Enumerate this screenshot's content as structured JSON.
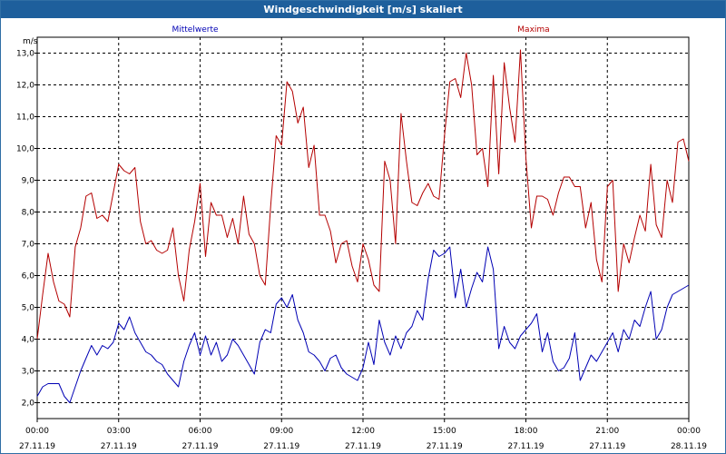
{
  "window": {
    "title": "Windgeschwindigkeit [m/s] skaliert"
  },
  "colors": {
    "titlebar": "#1e5f9c",
    "mittelwerte": "#0000b4",
    "maxima": "#b40000",
    "grid": "#000000"
  },
  "chart_data": {
    "type": "line",
    "title": "Windgeschwindigkeit [m/s] skaliert",
    "ylabel": "m/s",
    "xlabel": "",
    "ylim": [
      1.5,
      13.5
    ],
    "xlim": [
      0,
      24
    ],
    "grid": true,
    "yticks": [
      "2,0",
      "3,0",
      "4,0",
      "5,0",
      "6,0",
      "7,0",
      "8,0",
      "9,0",
      "10,0",
      "11,0",
      "12,0",
      "13,0"
    ],
    "ytick_values": [
      2,
      3,
      4,
      5,
      6,
      7,
      8,
      9,
      10,
      11,
      12,
      13
    ],
    "xticks": [
      {
        "time": "00:00",
        "date": "27.11.19"
      },
      {
        "time": "03:00",
        "date": "27.11.19"
      },
      {
        "time": "06:00",
        "date": "27.11.19"
      },
      {
        "time": "09:00",
        "date": "27.11.19"
      },
      {
        "time": "12:00",
        "date": "27.11.19"
      },
      {
        "time": "15:00",
        "date": "27.11.19"
      },
      {
        "time": "18:00",
        "date": "27.11.19"
      },
      {
        "time": "21:00",
        "date": "27.11.19"
      },
      {
        "time": "00:00",
        "date": "28.11.19"
      }
    ],
    "series": [
      {
        "name": "Mittelwerte",
        "color": "#0000b4",
        "points": [
          [
            0.0,
            2.2
          ],
          [
            0.2,
            2.5
          ],
          [
            0.4,
            2.6
          ],
          [
            0.6,
            2.6
          ],
          [
            0.8,
            2.6
          ],
          [
            1.0,
            2.2
          ],
          [
            1.2,
            2.0
          ],
          [
            1.4,
            2.5
          ],
          [
            1.6,
            3.0
          ],
          [
            1.8,
            3.4
          ],
          [
            2.0,
            3.8
          ],
          [
            2.2,
            3.5
          ],
          [
            2.4,
            3.8
          ],
          [
            2.6,
            3.7
          ],
          [
            2.8,
            3.9
          ],
          [
            3.0,
            4.5
          ],
          [
            3.2,
            4.3
          ],
          [
            3.4,
            4.7
          ],
          [
            3.6,
            4.2
          ],
          [
            3.8,
            3.9
          ],
          [
            4.0,
            3.6
          ],
          [
            4.2,
            3.5
          ],
          [
            4.4,
            3.3
          ],
          [
            4.6,
            3.2
          ],
          [
            4.8,
            2.9
          ],
          [
            5.0,
            2.7
          ],
          [
            5.2,
            2.5
          ],
          [
            5.4,
            3.3
          ],
          [
            5.6,
            3.8
          ],
          [
            5.8,
            4.2
          ],
          [
            6.0,
            3.5
          ],
          [
            6.2,
            4.1
          ],
          [
            6.4,
            3.5
          ],
          [
            6.6,
            3.9
          ],
          [
            6.8,
            3.3
          ],
          [
            7.0,
            3.5
          ],
          [
            7.2,
            4.0
          ],
          [
            7.4,
            3.8
          ],
          [
            7.6,
            3.5
          ],
          [
            7.8,
            3.2
          ],
          [
            8.0,
            2.9
          ],
          [
            8.2,
            3.9
          ],
          [
            8.4,
            4.3
          ],
          [
            8.6,
            4.2
          ],
          [
            8.8,
            5.1
          ],
          [
            9.0,
            5.3
          ],
          [
            9.2,
            5.0
          ],
          [
            9.4,
            5.4
          ],
          [
            9.6,
            4.6
          ],
          [
            9.8,
            4.2
          ],
          [
            10.0,
            3.6
          ],
          [
            10.2,
            3.5
          ],
          [
            10.4,
            3.3
          ],
          [
            10.6,
            3.0
          ],
          [
            10.8,
            3.4
          ],
          [
            11.0,
            3.5
          ],
          [
            11.2,
            3.1
          ],
          [
            11.4,
            2.9
          ],
          [
            11.6,
            2.8
          ],
          [
            11.8,
            2.7
          ],
          [
            12.0,
            3.1
          ],
          [
            12.2,
            3.9
          ],
          [
            12.4,
            3.2
          ],
          [
            12.6,
            4.6
          ],
          [
            12.8,
            3.9
          ],
          [
            13.0,
            3.5
          ],
          [
            13.2,
            4.1
          ],
          [
            13.4,
            3.7
          ],
          [
            13.6,
            4.2
          ],
          [
            13.8,
            4.4
          ],
          [
            14.0,
            4.9
          ],
          [
            14.2,
            4.6
          ],
          [
            14.4,
            5.9
          ],
          [
            14.6,
            6.8
          ],
          [
            14.8,
            6.6
          ],
          [
            15.0,
            6.7
          ],
          [
            15.2,
            6.9
          ],
          [
            15.4,
            5.3
          ],
          [
            15.6,
            6.2
          ],
          [
            15.8,
            5.0
          ],
          [
            16.0,
            5.6
          ],
          [
            16.2,
            6.1
          ],
          [
            16.4,
            5.8
          ],
          [
            16.6,
            6.9
          ],
          [
            16.8,
            6.2
          ],
          [
            17.0,
            3.7
          ],
          [
            17.2,
            4.4
          ],
          [
            17.4,
            3.9
          ],
          [
            17.6,
            3.7
          ],
          [
            17.8,
            4.1
          ],
          [
            18.0,
            4.3
          ],
          [
            18.2,
            4.5
          ],
          [
            18.4,
            4.8
          ],
          [
            18.6,
            3.6
          ],
          [
            18.8,
            4.2
          ],
          [
            19.0,
            3.3
          ],
          [
            19.2,
            3.0
          ],
          [
            19.4,
            3.1
          ],
          [
            19.6,
            3.4
          ],
          [
            19.8,
            4.2
          ],
          [
            20.0,
            2.7
          ],
          [
            20.2,
            3.1
          ],
          [
            20.4,
            3.5
          ],
          [
            20.6,
            3.3
          ],
          [
            20.8,
            3.6
          ],
          [
            21.0,
            3.9
          ],
          [
            21.2,
            4.2
          ],
          [
            21.4,
            3.6
          ],
          [
            21.6,
            4.3
          ],
          [
            21.8,
            4.0
          ],
          [
            22.0,
            4.6
          ],
          [
            22.2,
            4.4
          ],
          [
            22.4,
            5.0
          ],
          [
            22.6,
            5.5
          ],
          [
            22.8,
            4.0
          ],
          [
            23.0,
            4.3
          ],
          [
            23.2,
            5.0
          ],
          [
            23.4,
            5.4
          ],
          [
            23.6,
            5.5
          ],
          [
            23.8,
            5.6
          ],
          [
            24.0,
            5.7
          ]
        ]
      },
      {
        "name": "Maxima",
        "color": "#b40000",
        "points": [
          [
            0.0,
            4.0
          ],
          [
            0.2,
            5.4
          ],
          [
            0.4,
            6.7
          ],
          [
            0.6,
            5.8
          ],
          [
            0.8,
            5.2
          ],
          [
            1.0,
            5.1
          ],
          [
            1.2,
            4.7
          ],
          [
            1.4,
            6.9
          ],
          [
            1.6,
            7.5
          ],
          [
            1.8,
            8.5
          ],
          [
            2.0,
            8.6
          ],
          [
            2.2,
            7.8
          ],
          [
            2.4,
            7.9
          ],
          [
            2.6,
            7.7
          ],
          [
            2.8,
            8.6
          ],
          [
            3.0,
            9.5
          ],
          [
            3.2,
            9.3
          ],
          [
            3.4,
            9.2
          ],
          [
            3.6,
            9.4
          ],
          [
            3.8,
            7.7
          ],
          [
            4.0,
            7.0
          ],
          [
            4.2,
            7.1
          ],
          [
            4.4,
            6.8
          ],
          [
            4.6,
            6.7
          ],
          [
            4.8,
            6.8
          ],
          [
            5.0,
            7.5
          ],
          [
            5.2,
            6.0
          ],
          [
            5.4,
            5.2
          ],
          [
            5.6,
            6.8
          ],
          [
            5.8,
            7.7
          ],
          [
            6.0,
            8.9
          ],
          [
            6.2,
            6.6
          ],
          [
            6.4,
            8.3
          ],
          [
            6.6,
            7.9
          ],
          [
            6.8,
            7.9
          ],
          [
            7.0,
            7.2
          ],
          [
            7.2,
            7.8
          ],
          [
            7.4,
            7.0
          ],
          [
            7.6,
            8.5
          ],
          [
            7.8,
            7.3
          ],
          [
            8.0,
            7.0
          ],
          [
            8.2,
            6.0
          ],
          [
            8.4,
            5.7
          ],
          [
            8.6,
            8.2
          ],
          [
            8.8,
            10.4
          ],
          [
            9.0,
            10.1
          ],
          [
            9.2,
            12.1
          ],
          [
            9.4,
            11.8
          ],
          [
            9.6,
            10.8
          ],
          [
            9.8,
            11.3
          ],
          [
            10.0,
            9.4
          ],
          [
            10.2,
            10.1
          ],
          [
            10.4,
            7.9
          ],
          [
            10.6,
            7.9
          ],
          [
            10.8,
            7.4
          ],
          [
            11.0,
            6.4
          ],
          [
            11.2,
            7.0
          ],
          [
            11.4,
            7.1
          ],
          [
            11.6,
            6.3
          ],
          [
            11.8,
            5.8
          ],
          [
            12.0,
            7.0
          ],
          [
            12.2,
            6.5
          ],
          [
            12.4,
            5.7
          ],
          [
            12.6,
            5.5
          ],
          [
            12.8,
            9.6
          ],
          [
            13.0,
            9.0
          ],
          [
            13.2,
            7.0
          ],
          [
            13.4,
            11.1
          ],
          [
            13.6,
            9.6
          ],
          [
            13.8,
            8.3
          ],
          [
            14.0,
            8.2
          ],
          [
            14.2,
            8.6
          ],
          [
            14.4,
            8.9
          ],
          [
            14.6,
            8.5
          ],
          [
            14.8,
            8.4
          ],
          [
            15.0,
            10.4
          ],
          [
            15.2,
            12.1
          ],
          [
            15.4,
            12.2
          ],
          [
            15.6,
            11.6
          ],
          [
            15.8,
            13.0
          ],
          [
            16.0,
            12.0
          ],
          [
            16.2,
            9.8
          ],
          [
            16.4,
            10.0
          ],
          [
            16.6,
            8.8
          ],
          [
            16.8,
            12.3
          ],
          [
            17.0,
            9.2
          ],
          [
            17.2,
            12.7
          ],
          [
            17.4,
            11.3
          ],
          [
            17.6,
            10.2
          ],
          [
            17.8,
            13.1
          ],
          [
            18.0,
            9.7
          ],
          [
            18.2,
            7.5
          ],
          [
            18.4,
            8.5
          ],
          [
            18.6,
            8.5
          ],
          [
            18.8,
            8.4
          ],
          [
            19.0,
            7.9
          ],
          [
            19.2,
            8.6
          ],
          [
            19.4,
            9.1
          ],
          [
            19.6,
            9.1
          ],
          [
            19.8,
            8.8
          ],
          [
            20.0,
            8.8
          ],
          [
            20.2,
            7.5
          ],
          [
            20.4,
            8.3
          ],
          [
            20.6,
            6.5
          ],
          [
            20.8,
            5.8
          ],
          [
            21.0,
            8.8
          ],
          [
            21.2,
            9.0
          ],
          [
            21.4,
            5.5
          ],
          [
            21.6,
            7.0
          ],
          [
            21.8,
            6.4
          ],
          [
            22.0,
            7.2
          ],
          [
            22.2,
            7.9
          ],
          [
            22.4,
            7.4
          ],
          [
            22.6,
            9.5
          ],
          [
            22.8,
            7.6
          ],
          [
            23.0,
            7.2
          ],
          [
            23.2,
            9.0
          ],
          [
            23.4,
            8.3
          ],
          [
            23.6,
            10.2
          ],
          [
            23.8,
            10.3
          ],
          [
            24.0,
            9.6
          ]
        ]
      }
    ]
  }
}
